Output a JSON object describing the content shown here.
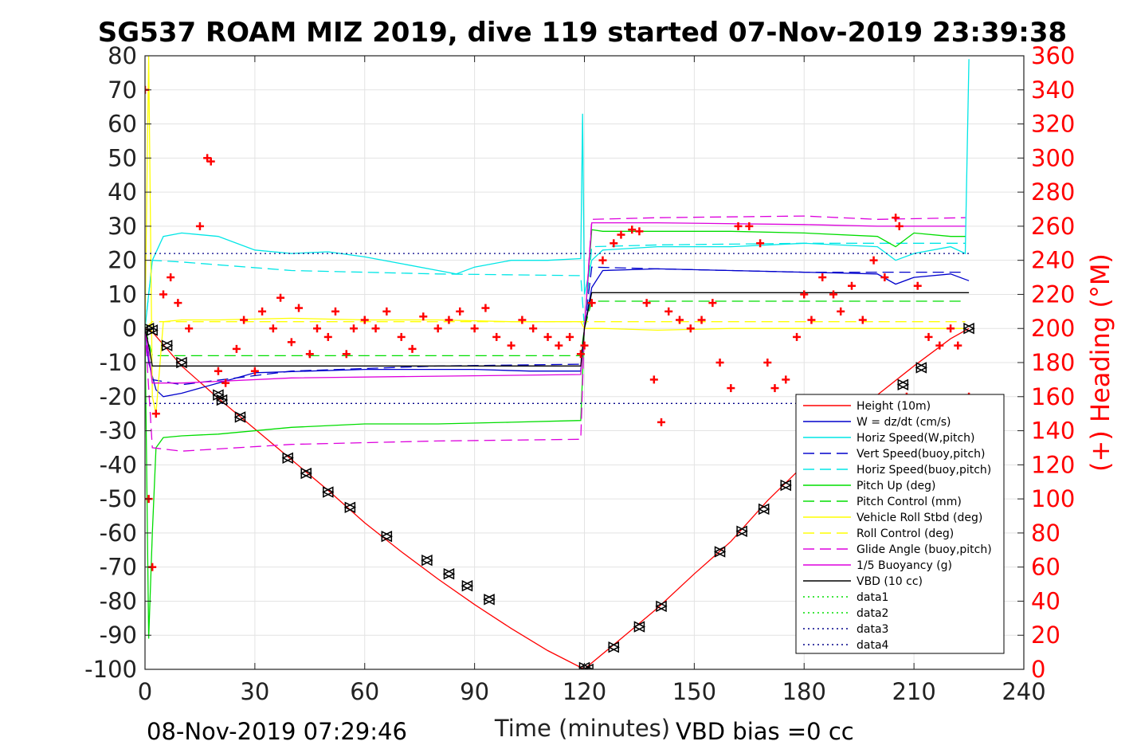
{
  "chart_data": {
    "type": "line",
    "title": "SG537 ROAM MIZ 2019, dive 119 started 07-Nov-2019 23:39:38",
    "xlabel": "Time (minutes)",
    "ylabel_right": "(+) Heading (°M)",
    "footer_left": "08-Nov-2019 07:29:46",
    "footer_right": "VBD bias =0 cc",
    "xlim": [
      0,
      240
    ],
    "ylim_left": [
      -100,
      80
    ],
    "ylim_right": [
      0,
      360
    ],
    "xticks": [
      0,
      30,
      60,
      90,
      120,
      150,
      180,
      210,
      240
    ],
    "yticks_left": [
      80,
      70,
      60,
      50,
      40,
      30,
      20,
      10,
      0,
      -10,
      -20,
      -30,
      -40,
      -50,
      -60,
      -70,
      -80,
      -90,
      -100
    ],
    "yticks_right": [
      360,
      340,
      320,
      300,
      280,
      260,
      240,
      220,
      200,
      180,
      160,
      140,
      120,
      100,
      80,
      60,
      40,
      20,
      0
    ],
    "grid": true,
    "legend_position": "lower-right",
    "colors": {
      "red": "#ff0000",
      "blue": "#0000cc",
      "cyan": "#00e6e6",
      "green": "#00dd00",
      "yellow": "#ffff00",
      "magenta": "#dd00dd",
      "black": "#000000",
      "navy": "#000088"
    },
    "series": [
      {
        "name": "Height (10m)",
        "color": "#ff0000",
        "dash": "solid",
        "x": [
          0,
          2,
          10,
          20,
          30,
          40,
          50,
          60,
          70,
          80,
          90,
          100,
          110,
          120,
          121,
          130,
          140,
          150,
          160,
          170,
          180,
          190,
          200,
          210,
          220,
          225
        ],
        "y": [
          0,
          -1,
          -11,
          -20.5,
          -29.5,
          -38.5,
          -47.5,
          -57,
          -65.5,
          -73.5,
          -81,
          -88,
          -94.5,
          -100,
          -99,
          -91,
          -82,
          -72,
          -62.5,
          -50.5,
          -40,
          -30,
          -19.5,
          -11,
          -3,
          0
        ]
      },
      {
        "name": "W = dz/dt (cm/s)",
        "color": "#0000cc",
        "dash": "solid",
        "x": [
          0,
          1,
          3,
          5,
          10,
          20,
          30,
          45,
          60,
          75,
          90,
          105,
          119,
          120,
          122,
          125,
          140,
          160,
          180,
          200,
          205,
          210,
          220,
          225
        ],
        "y": [
          0,
          -10,
          -18,
          -20,
          -19,
          -16,
          -13,
          -12.5,
          -12,
          -12,
          -12,
          -12.5,
          -12.5,
          0,
          12,
          17,
          17.5,
          17,
          16.5,
          16,
          13,
          15,
          16,
          14
        ]
      },
      {
        "name": "Horiz Speed(W,pitch)",
        "color": "#00e6e6",
        "dash": "solid",
        "x": [
          0,
          2,
          5,
          10,
          20,
          30,
          40,
          50,
          60,
          70,
          80,
          85,
          90,
          100,
          110,
          119,
          119.5,
          120,
          122,
          125,
          140,
          160,
          180,
          200,
          205,
          210,
          220,
          224,
          225
        ],
        "y": [
          0,
          20,
          27,
          28,
          27,
          23,
          22,
          22.5,
          21,
          19,
          17,
          16,
          18,
          20,
          20,
          20.5,
          63,
          10,
          20,
          23,
          24,
          24,
          25,
          24,
          20,
          22,
          24,
          22,
          79
        ]
      },
      {
        "name": "Vert Speed(buoy,pitch)",
        "color": "#0000cc",
        "dash": "long",
        "x": [
          0,
          2,
          10,
          40,
          80,
          119,
          120,
          122,
          140,
          180,
          200,
          224
        ],
        "y": [
          0,
          -15,
          -16.5,
          -12.5,
          -11,
          -10.5,
          0,
          18,
          17.5,
          16.5,
          16.5,
          16.5
        ]
      },
      {
        "name": "Horiz Speed(buoy,pitch)",
        "color": "#00e6e6",
        "dash": "long",
        "x": [
          0,
          2,
          10,
          40,
          80,
          119,
          120,
          122,
          140,
          180,
          200,
          224
        ],
        "y": [
          0,
          20,
          19.5,
          17,
          16,
          15.5,
          0,
          24,
          24.5,
          25,
          25,
          25
        ]
      },
      {
        "name": "Pitch Up (deg)",
        "color": "#00dd00",
        "dash": "solid",
        "x": [
          0,
          1,
          2,
          3,
          5,
          10,
          20,
          40,
          60,
          80,
          100,
          119,
          120,
          122,
          125,
          140,
          160,
          180,
          200,
          205,
          210,
          220,
          224
        ],
        "y": [
          0,
          -91,
          -60,
          -35,
          -32,
          -31.5,
          -31,
          -29,
          -28,
          -28,
          -27.5,
          -27,
          0,
          29,
          28.5,
          28.5,
          28.5,
          28,
          27,
          24,
          28,
          27,
          27
        ]
      },
      {
        "name": "Pitch Control (mm)",
        "color": "#00dd00",
        "dash": "long",
        "x": [
          0,
          2,
          119,
          120,
          122,
          224
        ],
        "y": [
          0,
          -8,
          -8,
          0,
          8,
          8
        ]
      },
      {
        "name": "Vehicle Roll Stbd (deg)",
        "color": "#ffff00",
        "dash": "solid",
        "x": [
          0,
          1,
          2,
          3,
          5,
          10,
          20,
          40,
          60,
          80,
          100,
          119,
          120,
          122,
          125,
          140,
          160,
          180,
          200,
          210,
          220,
          224
        ],
        "y": [
          0,
          80,
          -20,
          -25,
          2,
          2.5,
          2.5,
          3,
          2.5,
          2.5,
          2,
          2,
          0,
          0,
          0,
          -0.5,
          0,
          0,
          0,
          0,
          0,
          0
        ]
      },
      {
        "name": "Roll Control (deg)",
        "color": "#ffff00",
        "dash": "long",
        "x": [
          0,
          2,
          224
        ],
        "y": [
          0,
          2,
          2
        ]
      },
      {
        "name": "Glide Angle (buoy,pitch)",
        "color": "#dd00dd",
        "dash": "long",
        "x": [
          0,
          2,
          10,
          40,
          80,
          119,
          120,
          122,
          140,
          180,
          200,
          224
        ],
        "y": [
          0,
          -35,
          -36,
          -34,
          -33,
          -32.5,
          0,
          32,
          32.5,
          33,
          32,
          32.5
        ]
      },
      {
        "name": "1/5 Buoyancy (g)",
        "color": "#dd00dd",
        "dash": "solid",
        "x": [
          0,
          2,
          10,
          40,
          80,
          119,
          120,
          122,
          140,
          180,
          200,
          224
        ],
        "y": [
          0,
          -16,
          -16,
          -14.5,
          -14,
          -13.5,
          0,
          31,
          31,
          30.5,
          30,
          30
        ]
      },
      {
        "name": "VBD (10 cc)",
        "color": "#000000",
        "dash": "solid",
        "x": [
          0,
          1,
          2,
          119,
          120,
          122,
          225
        ],
        "y": [
          0,
          -5,
          -11,
          -11,
          0,
          10.5,
          10.5
        ]
      },
      {
        "name": "data1",
        "color": "#00dd00",
        "dash": "dot",
        "x": [],
        "y": []
      },
      {
        "name": "data2",
        "color": "#00dd00",
        "dash": "dot",
        "x": [],
        "y": []
      },
      {
        "name": "data3",
        "color": "#000088",
        "dash": "dot",
        "x": [
          0,
          225
        ],
        "y": [
          22,
          22
        ]
      },
      {
        "name": "data4",
        "color": "#000088",
        "dash": "dot",
        "x": [
          0,
          225
        ],
        "y": [
          -22,
          -22
        ]
      }
    ],
    "heading_markers": {
      "marker": "+",
      "color": "#ff0000",
      "axis": "right",
      "x": [
        0,
        1,
        2,
        3,
        5,
        7,
        9,
        12,
        15,
        17,
        18,
        20,
        22,
        25,
        27,
        30,
        32,
        35,
        37,
        40,
        42,
        45,
        47,
        50,
        52,
        55,
        57,
        60,
        63,
        66,
        70,
        73,
        76,
        80,
        83,
        86,
        90,
        93,
        96,
        100,
        103,
        106,
        110,
        113,
        116,
        119,
        120,
        122,
        125,
        128,
        130,
        133,
        135,
        137,
        139,
        141,
        143,
        146,
        149,
        152,
        155,
        157,
        160,
        162,
        165,
        168,
        170,
        172,
        175,
        178,
        180,
        182,
        185,
        188,
        190,
        193,
        196,
        199,
        202,
        205,
        206,
        208,
        211,
        214,
        217,
        220,
        222,
        225
      ],
      "y": [
        340,
        100,
        60,
        150,
        220,
        230,
        215,
        200,
        260,
        300,
        298,
        175,
        168,
        188,
        205,
        175,
        210,
        200,
        218,
        192,
        212,
        185,
        200,
        195,
        210,
        185,
        200,
        205,
        200,
        210,
        195,
        188,
        207,
        200,
        205,
        210,
        200,
        212,
        195,
        190,
        205,
        200,
        195,
        190,
        195,
        185,
        190,
        215,
        240,
        250,
        255,
        258,
        257,
        215,
        170,
        145,
        210,
        205,
        200,
        205,
        215,
        180,
        165,
        260,
        260,
        250,
        180,
        165,
        170,
        195,
        220,
        205,
        230,
        220,
        210,
        225,
        205,
        240,
        230,
        265,
        260,
        160,
        225,
        195,
        190,
        200,
        190,
        160
      ]
    },
    "dive_markers": {
      "marker": "triangles",
      "color": "#000000",
      "x": [
        1,
        2,
        6,
        10,
        20,
        21,
        26,
        39,
        44,
        50,
        56,
        66,
        77,
        83,
        88,
        94,
        120,
        121,
        128,
        135,
        141,
        157,
        163,
        169,
        175,
        201,
        207,
        212,
        225
      ],
      "y": [
        0,
        -0.5,
        -5,
        -10,
        -19.5,
        -21,
        -26,
        -38,
        -42.5,
        -48,
        -52.5,
        -61,
        -68,
        -72,
        -75.5,
        -79.5,
        -99.5,
        -100,
        -93.5,
        -87.5,
        -81.5,
        -65.5,
        -59.5,
        -53,
        -46,
        -21,
        -16.5,
        -11.5,
        0
      ]
    }
  }
}
